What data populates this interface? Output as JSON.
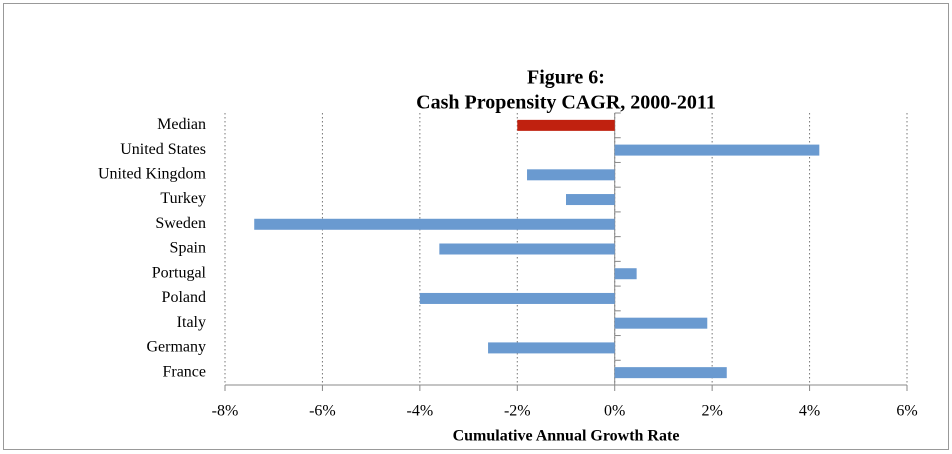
{
  "chart_data": {
    "type": "barh",
    "title": "Figure 6:",
    "subtitle": "Cash Propensity CAGR, 2000-2011",
    "x_label": "Cumulative Annual Growth Rate",
    "categories": [
      "Median",
      "United States",
      "United Kingdom",
      "Turkey",
      "Sweden",
      "Spain",
      "Portugal",
      "Poland",
      "Italy",
      "Germany",
      "France"
    ],
    "values": [
      -2.0,
      4.2,
      -1.8,
      -1.0,
      -7.4,
      -3.6,
      0.45,
      -4.0,
      1.9,
      -2.6,
      2.3
    ],
    "colors": [
      "#c0210f",
      "#6a9ad0",
      "#6a9ad0",
      "#6a9ad0",
      "#6a9ad0",
      "#6a9ad0",
      "#6a9ad0",
      "#6a9ad0",
      "#6a9ad0",
      "#6a9ad0",
      "#6a9ad0"
    ],
    "xlim": [
      -8,
      6
    ],
    "xticks": [
      {
        "value": -8,
        "label": "-8%"
      },
      {
        "value": -6,
        "label": "-6%"
      },
      {
        "value": -4,
        "label": "-4%"
      },
      {
        "value": -2,
        "label": "-2%"
      },
      {
        "value": 0,
        "label": "0%"
      },
      {
        "value": 2,
        "label": "2%"
      },
      {
        "value": 4,
        "label": "4%"
      },
      {
        "value": 6,
        "label": "6%"
      }
    ],
    "grid": true
  }
}
